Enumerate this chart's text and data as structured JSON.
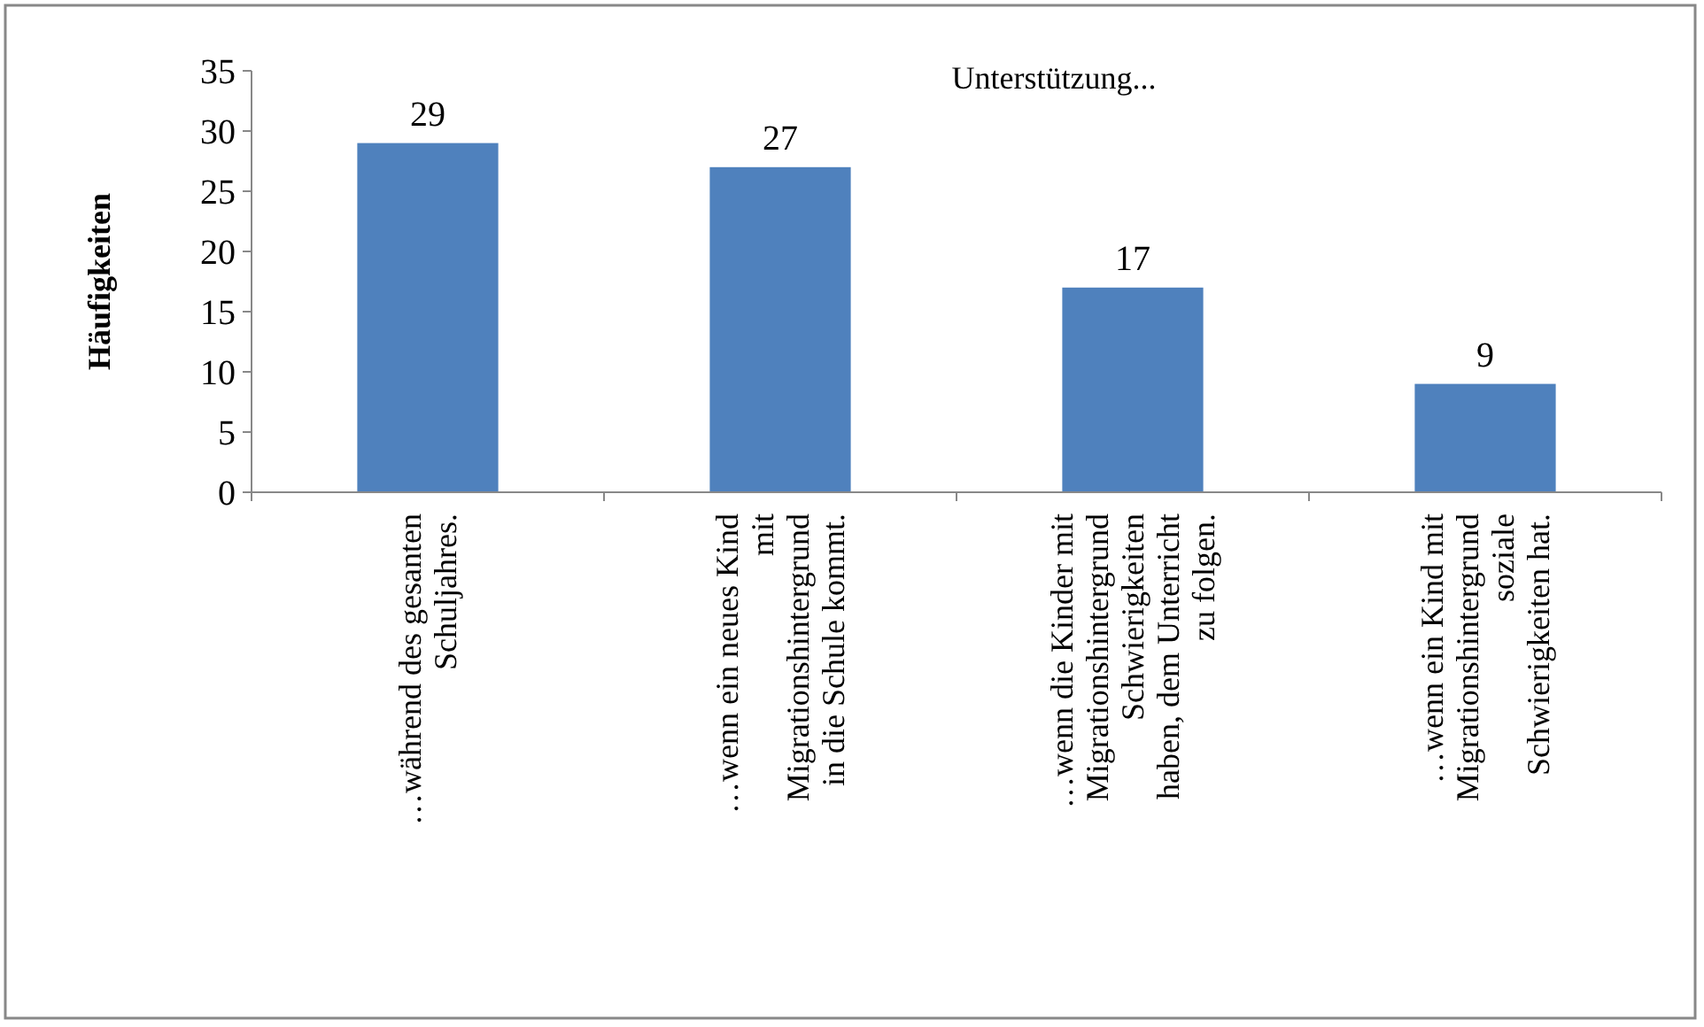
{
  "chart_data": {
    "type": "bar",
    "title": "Unterstützung...",
    "ylabel": "Häufigkeiten",
    "categories": [
      "…während des gesanten Schuljahres.",
      "…wenn ein neues Kind mit Migrationshintergrund in die Schule kommt.",
      "…wenn die Kinder mit Migrationshintergrund Schwierigkeiten haben, dem Unterricht zu folgen.",
      "…wenn ein Kind mit Migrationshintergrund soziale Schwierigkeiten hat."
    ],
    "values": [
      29,
      27,
      17,
      9
    ],
    "color": "#4f81bd",
    "data_labels": true,
    "ylim": [
      0,
      35
    ],
    "yticks": [
      0,
      5,
      10,
      15,
      20,
      25,
      30,
      35
    ],
    "grid": false
  }
}
